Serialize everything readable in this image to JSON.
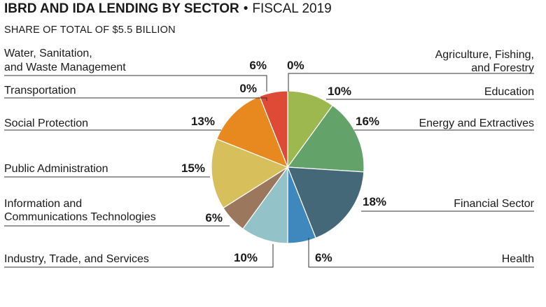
{
  "title_main": "IBRD AND IDA LENDING BY SECTOR",
  "title_separator": "•",
  "title_period": "FISCAL 2019",
  "subtitle": "SHARE OF TOTAL OF $5.5 BILLION",
  "chart_data": {
    "type": "pie",
    "title": "IBRD AND IDA LENDING BY SECTOR • FISCAL 2019",
    "subtitle": "SHARE OF TOTAL OF $5.5 BILLION",
    "slices": [
      {
        "label": [
          "Agriculture, Fishing,",
          "and Forestry"
        ],
        "value": 0,
        "display": "0%",
        "color": "#9db84f"
      },
      {
        "label": [
          "Education"
        ],
        "value": 10,
        "display": "10%",
        "color": "#9db84f"
      },
      {
        "label": [
          "Energy and Extractives"
        ],
        "value": 16,
        "display": "16%",
        "color": "#63a36a"
      },
      {
        "label": [
          "Financial Sector"
        ],
        "value": 18,
        "display": "18%",
        "color": "#456878"
      },
      {
        "label": [
          "Health"
        ],
        "value": 6,
        "display": "6%",
        "color": "#3f88bd"
      },
      {
        "label": [
          "Industry, Trade, and Services"
        ],
        "value": 10,
        "display": "10%",
        "color": "#93c3c8"
      },
      {
        "label": [
          "Information and",
          "Communications Technologies"
        ],
        "value": 6,
        "display": "6%",
        "color": "#9b785d"
      },
      {
        "label": [
          "Public Administration"
        ],
        "value": 15,
        "display": "15%",
        "color": "#d7c05b"
      },
      {
        "label": [
          "Social Protection"
        ],
        "value": 13,
        "display": "13%",
        "color": "#e8891f"
      },
      {
        "label": [
          "Transportation"
        ],
        "value": 0,
        "display": "0%",
        "color": "#e8891f"
      },
      {
        "label": [
          "Water, Sanitation,",
          "and Waste Management"
        ],
        "value": 6,
        "display": "6%",
        "color": "#de4a35"
      }
    ]
  }
}
